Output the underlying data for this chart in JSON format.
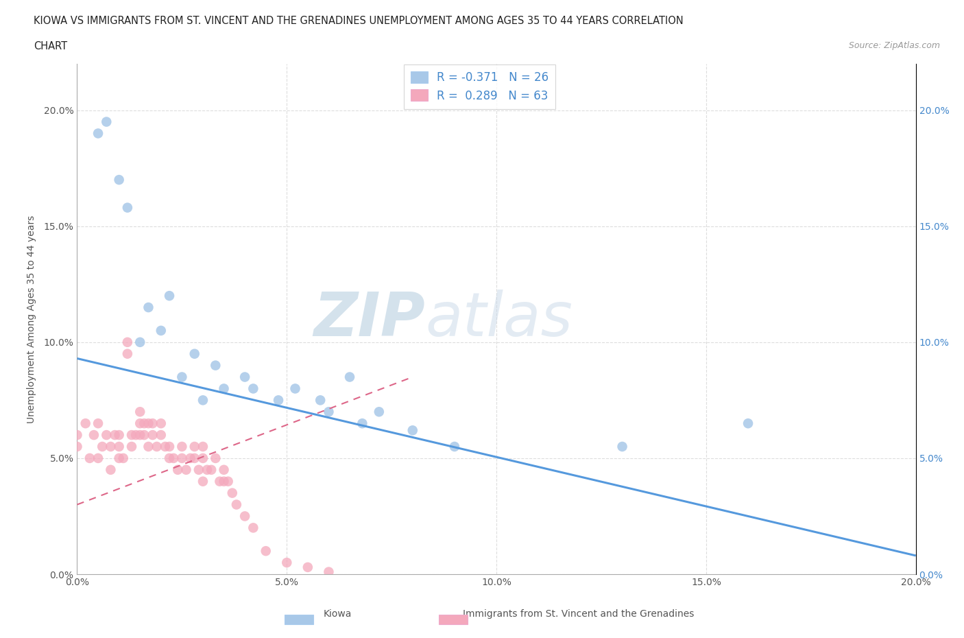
{
  "title_line1": "KIOWA VS IMMIGRANTS FROM ST. VINCENT AND THE GRENADINES UNEMPLOYMENT AMONG AGES 35 TO 44 YEARS CORRELATION",
  "title_line2": "CHART",
  "source": "Source: ZipAtlas.com",
  "ylabel": "Unemployment Among Ages 35 to 44 years",
  "xlim": [
    0.0,
    0.2
  ],
  "ylim": [
    0.0,
    0.22
  ],
  "xticks": [
    0.0,
    0.05,
    0.1,
    0.15,
    0.2
  ],
  "yticks": [
    0.0,
    0.05,
    0.1,
    0.15,
    0.2
  ],
  "xtick_labels": [
    "0.0%",
    "5.0%",
    "10.0%",
    "15.0%",
    "20.0%"
  ],
  "ytick_labels": [
    "0.0%",
    "5.0%",
    "10.0%",
    "15.0%",
    "20.0%"
  ],
  "kiowa_R": -0.371,
  "kiowa_N": 26,
  "svg_R": 0.289,
  "svg_N": 63,
  "kiowa_color": "#a8c8e8",
  "svg_color": "#f4a8bc",
  "kiowa_line_color": "#5599dd",
  "svg_line_color": "#dd6688",
  "watermark_zip": "ZIP",
  "watermark_atlas": "atlas",
  "legend_label1": "Kiowa",
  "legend_label2": "Immigrants from St. Vincent and the Grenadines",
  "background_color": "#ffffff",
  "grid_color": "#dddddd",
  "kiowa_x": [
    0.005,
    0.007,
    0.01,
    0.012,
    0.015,
    0.017,
    0.02,
    0.022,
    0.025,
    0.028,
    0.03,
    0.033,
    0.035,
    0.04,
    0.042,
    0.048,
    0.052,
    0.058,
    0.06,
    0.065,
    0.068,
    0.072,
    0.08,
    0.09,
    0.13,
    0.16
  ],
  "kiowa_y": [
    0.19,
    0.195,
    0.17,
    0.158,
    0.1,
    0.115,
    0.105,
    0.12,
    0.085,
    0.095,
    0.075,
    0.09,
    0.08,
    0.085,
    0.08,
    0.075,
    0.08,
    0.075,
    0.07,
    0.085,
    0.065,
    0.07,
    0.062,
    0.055,
    0.055,
    0.065
  ],
  "svg_x": [
    0.0,
    0.0,
    0.002,
    0.003,
    0.004,
    0.005,
    0.005,
    0.006,
    0.007,
    0.008,
    0.008,
    0.009,
    0.01,
    0.01,
    0.01,
    0.011,
    0.012,
    0.012,
    0.013,
    0.013,
    0.014,
    0.015,
    0.015,
    0.015,
    0.016,
    0.016,
    0.017,
    0.017,
    0.018,
    0.018,
    0.019,
    0.02,
    0.02,
    0.021,
    0.022,
    0.022,
    0.023,
    0.024,
    0.025,
    0.025,
    0.026,
    0.027,
    0.028,
    0.028,
    0.029,
    0.03,
    0.03,
    0.03,
    0.031,
    0.032,
    0.033,
    0.034,
    0.035,
    0.035,
    0.036,
    0.037,
    0.038,
    0.04,
    0.042,
    0.045,
    0.05,
    0.055,
    0.06
  ],
  "svg_y": [
    0.06,
    0.055,
    0.065,
    0.05,
    0.06,
    0.05,
    0.065,
    0.055,
    0.06,
    0.045,
    0.055,
    0.06,
    0.05,
    0.06,
    0.055,
    0.05,
    0.1,
    0.095,
    0.06,
    0.055,
    0.06,
    0.065,
    0.06,
    0.07,
    0.06,
    0.065,
    0.065,
    0.055,
    0.06,
    0.065,
    0.055,
    0.06,
    0.065,
    0.055,
    0.05,
    0.055,
    0.05,
    0.045,
    0.05,
    0.055,
    0.045,
    0.05,
    0.05,
    0.055,
    0.045,
    0.04,
    0.05,
    0.055,
    0.045,
    0.045,
    0.05,
    0.04,
    0.04,
    0.045,
    0.04,
    0.035,
    0.03,
    0.025,
    0.02,
    0.01,
    0.005,
    0.003,
    0.001
  ],
  "kiowa_trend_x0": 0.0,
  "kiowa_trend_y0": 0.093,
  "kiowa_trend_x1": 0.2,
  "kiowa_trend_y1": 0.008,
  "svg_trend_x0": 0.0,
  "svg_trend_y0": 0.03,
  "svg_trend_x1": 0.08,
  "svg_trend_y1": 0.085
}
